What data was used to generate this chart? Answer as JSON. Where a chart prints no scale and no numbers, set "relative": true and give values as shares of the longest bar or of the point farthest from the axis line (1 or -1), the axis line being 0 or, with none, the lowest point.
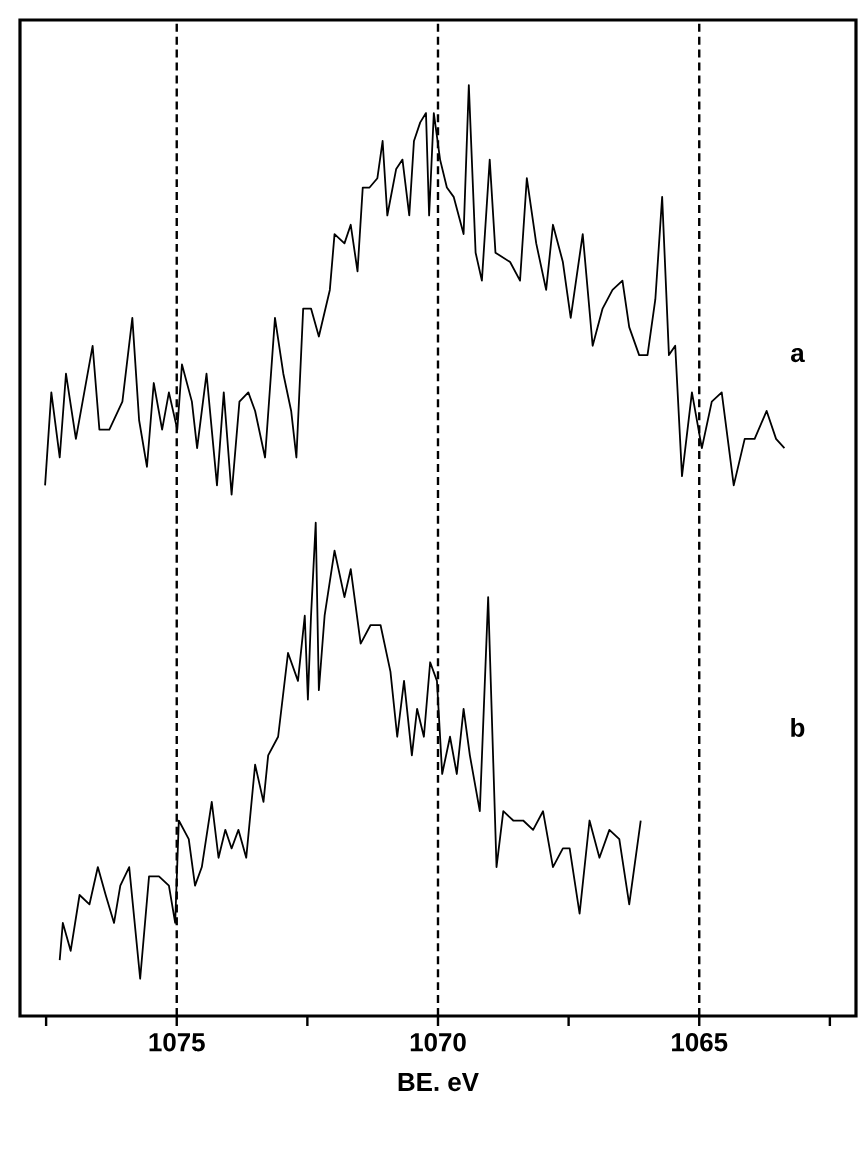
{
  "chart_data": {
    "type": "line",
    "relative": true,
    "xlabel": "BE. eV",
    "xlim": [
      1078,
      1062
    ],
    "xticks": [
      {
        "value": 1077.5,
        "label": null
      },
      1075,
      {
        "value": 1072.5,
        "label": null
      },
      1070,
      {
        "value": 1067.5,
        "label": null
      },
      1065,
      {
        "value": 1062.5,
        "label": null
      }
    ],
    "marker": "none",
    "line_style": "solid",
    "ref_lines": [
      {
        "axis": "x",
        "value": 1075,
        "line_style": "dashed",
        "color": "#000000"
      },
      {
        "axis": "x",
        "value": 1070,
        "line_style": "dashed",
        "color": "#000000"
      },
      {
        "axis": "x",
        "value": 1065,
        "line_style": "dashed",
        "color": "#000000"
      }
    ],
    "series": [
      {
        "name": "a",
        "color": "#000000",
        "x": [
          1077.52,
          1077.4,
          1077.24,
          1077.12,
          1076.93,
          1076.61,
          1076.48,
          1076.29,
          1076.04,
          1075.85,
          1075.72,
          1075.57,
          1075.44,
          1075.28,
          1075.15,
          1074.99,
          1074.9,
          1074.71,
          1074.61,
          1074.43,
          1074.23,
          1074.1,
          1073.95,
          1073.8,
          1073.63,
          1073.5,
          1073.31,
          1073.12,
          1072.96,
          1072.81,
          1072.71,
          1072.58,
          1072.43,
          1072.28,
          1072.07,
          1071.98,
          1071.79,
          1071.67,
          1071.54,
          1071.44,
          1071.31,
          1071.16,
          1071.06,
          1070.97,
          1070.8,
          1070.68,
          1070.55,
          1070.46,
          1070.34,
          1070.23,
          1070.17,
          1070.08,
          1069.96,
          1069.83,
          1069.7,
          1069.51,
          1069.41,
          1069.28,
          1069.16,
          1069.01,
          1068.9,
          1068.62,
          1068.43,
          1068.3,
          1068.12,
          1067.93,
          1067.8,
          1067.61,
          1067.46,
          1067.23,
          1067.04,
          1066.85,
          1066.66,
          1066.47,
          1066.34,
          1066.15,
          1065.99,
          1065.84,
          1065.71,
          1065.58,
          1065.46,
          1065.33,
          1065.14,
          1064.95,
          1064.76,
          1064.57,
          1064.34,
          1064.13,
          1063.94,
          1063.71,
          1063.53,
          1063.37
        ],
        "values": [
          0.57,
          0.67,
          0.6,
          0.69,
          0.62,
          0.72,
          0.63,
          0.63,
          0.66,
          0.75,
          0.64,
          0.59,
          0.68,
          0.63,
          0.67,
          0.63,
          0.7,
          0.66,
          0.61,
          0.69,
          0.57,
          0.67,
          0.56,
          0.66,
          0.67,
          0.65,
          0.6,
          0.75,
          0.69,
          0.65,
          0.6,
          0.76,
          0.76,
          0.73,
          0.78,
          0.84,
          0.83,
          0.85,
          0.8,
          0.89,
          0.89,
          0.9,
          0.94,
          0.86,
          0.91,
          0.92,
          0.86,
          0.94,
          0.96,
          0.97,
          0.86,
          0.97,
          0.92,
          0.89,
          0.88,
          0.84,
          1.0,
          0.82,
          0.79,
          0.92,
          0.82,
          0.81,
          0.79,
          0.9,
          0.83,
          0.78,
          0.85,
          0.81,
          0.75,
          0.84,
          0.72,
          0.76,
          0.78,
          0.79,
          0.74,
          0.71,
          0.71,
          0.77,
          0.88,
          0.71,
          0.72,
          0.58,
          0.67,
          0.61,
          0.66,
          0.67,
          0.57,
          0.62,
          0.62,
          0.65,
          0.62,
          0.61
        ]
      },
      {
        "name": "b",
        "color": "#000000",
        "x": [
          1077.24,
          1077.18,
          1077.03,
          1076.86,
          1076.67,
          1076.51,
          1076.36,
          1076.2,
          1076.08,
          1075.91,
          1075.7,
          1075.53,
          1075.34,
          1075.15,
          1075.03,
          1074.96,
          1074.77,
          1074.65,
          1074.52,
          1074.33,
          1074.2,
          1074.07,
          1073.95,
          1073.82,
          1073.67,
          1073.5,
          1073.34,
          1073.25,
          1073.06,
          1072.87,
          1072.68,
          1072.55,
          1072.49,
          1072.43,
          1072.34,
          1072.28,
          1072.17,
          1071.98,
          1071.79,
          1071.67,
          1071.48,
          1071.29,
          1071.1,
          1070.91,
          1070.78,
          1070.65,
          1070.5,
          1070.4,
          1070.27,
          1070.15,
          1070.02,
          1069.92,
          1069.77,
          1069.64,
          1069.51,
          1069.39,
          1069.2,
          1069.04,
          1068.88,
          1068.75,
          1068.56,
          1068.37,
          1068.18,
          1067.99,
          1067.8,
          1067.61,
          1067.48,
          1067.29,
          1067.1,
          1066.91,
          1066.72,
          1066.53,
          1066.34,
          1066.12
        ],
        "values": [
          0.06,
          0.1,
          0.07,
          0.13,
          0.12,
          0.16,
          0.13,
          0.1,
          0.14,
          0.16,
          0.04,
          0.15,
          0.15,
          0.14,
          0.1,
          0.21,
          0.19,
          0.14,
          0.16,
          0.23,
          0.17,
          0.2,
          0.18,
          0.2,
          0.17,
          0.27,
          0.23,
          0.28,
          0.3,
          0.39,
          0.36,
          0.43,
          0.34,
          0.43,
          0.53,
          0.35,
          0.43,
          0.5,
          0.45,
          0.48,
          0.4,
          0.42,
          0.42,
          0.37,
          0.3,
          0.36,
          0.28,
          0.33,
          0.3,
          0.38,
          0.36,
          0.26,
          0.3,
          0.26,
          0.33,
          0.28,
          0.22,
          0.45,
          0.16,
          0.22,
          0.21,
          0.21,
          0.2,
          0.22,
          0.16,
          0.18,
          0.18,
          0.11,
          0.21,
          0.17,
          0.2,
          0.19,
          0.12,
          0.21
        ]
      }
    ]
  }
}
